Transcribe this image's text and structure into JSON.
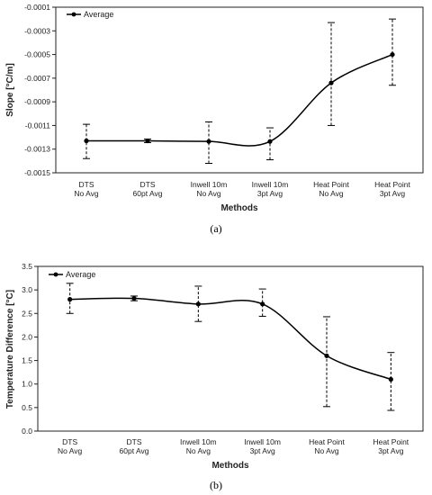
{
  "chart_data": [
    {
      "type": "line",
      "panel_label": "(a)",
      "categories": [
        [
          "DTS",
          "No Avg"
        ],
        [
          "DTS",
          "60pt Avg"
        ],
        [
          "Inwell 10m",
          "No Avg"
        ],
        [
          "Inwell 10m",
          "3pt Avg"
        ],
        [
          "Heat Point",
          "No Avg"
        ],
        [
          "Heat Point",
          "3pt Avg"
        ]
      ],
      "series": [
        {
          "name": "Average",
          "values": [
            -0.00123,
            -0.00123,
            -0.001235,
            -0.001235,
            -0.00074,
            -0.0005
          ],
          "error_low": [
            -0.00138,
            -0.001245,
            -0.00142,
            -0.00139,
            -0.0011,
            -0.00076
          ],
          "error_high": [
            -0.00109,
            -0.001215,
            -0.00107,
            -0.00112,
            -0.00023,
            -0.0002
          ]
        }
      ],
      "xlabel": "Methods",
      "ylabel": "Slope [°C/m]",
      "ylim": [
        -0.0015,
        -0.0001
      ],
      "yticks": [
        -0.0001,
        -0.0003,
        -0.0005,
        -0.0007,
        -0.0009,
        -0.0011,
        -0.0013,
        -0.0015
      ],
      "ytick_labels": [
        "-0.0001",
        "-0.0003",
        "-0.0005",
        "-0.0007",
        "-0.0009",
        "-0.0011",
        "-0.0013",
        "-0.0015"
      ],
      "legend": "top-left",
      "grid": false
    },
    {
      "type": "line",
      "panel_label": "(b)",
      "categories": [
        [
          "DTS",
          "No Avg"
        ],
        [
          "DTS",
          "60pt Avg"
        ],
        [
          "Inwell 10m",
          "No Avg"
        ],
        [
          "Inwell 10m",
          "3pt Avg"
        ],
        [
          "Heat Point",
          "No Avg"
        ],
        [
          "Heat Point",
          "3pt Avg"
        ]
      ],
      "series": [
        {
          "name": "Average",
          "values": [
            2.8,
            2.82,
            2.7,
            2.7,
            1.6,
            1.1
          ],
          "error_low": [
            2.5,
            2.77,
            2.33,
            2.44,
            0.52,
            0.44
          ],
          "error_high": [
            3.14,
            2.87,
            3.08,
            3.02,
            2.43,
            1.67
          ]
        }
      ],
      "xlabel": "Methods",
      "ylabel": "Temperature Difference [°C]",
      "ylim": [
        0,
        3.5
      ],
      "yticks": [
        0,
        0.5,
        1,
        1.5,
        2,
        2.5,
        3,
        3.5
      ],
      "ytick_labels": [
        "0.0",
        "0.5",
        "1.0",
        "1.5",
        "2.0",
        "2.5",
        "3.0",
        "3.5"
      ],
      "legend": "top-left",
      "grid": false
    }
  ]
}
